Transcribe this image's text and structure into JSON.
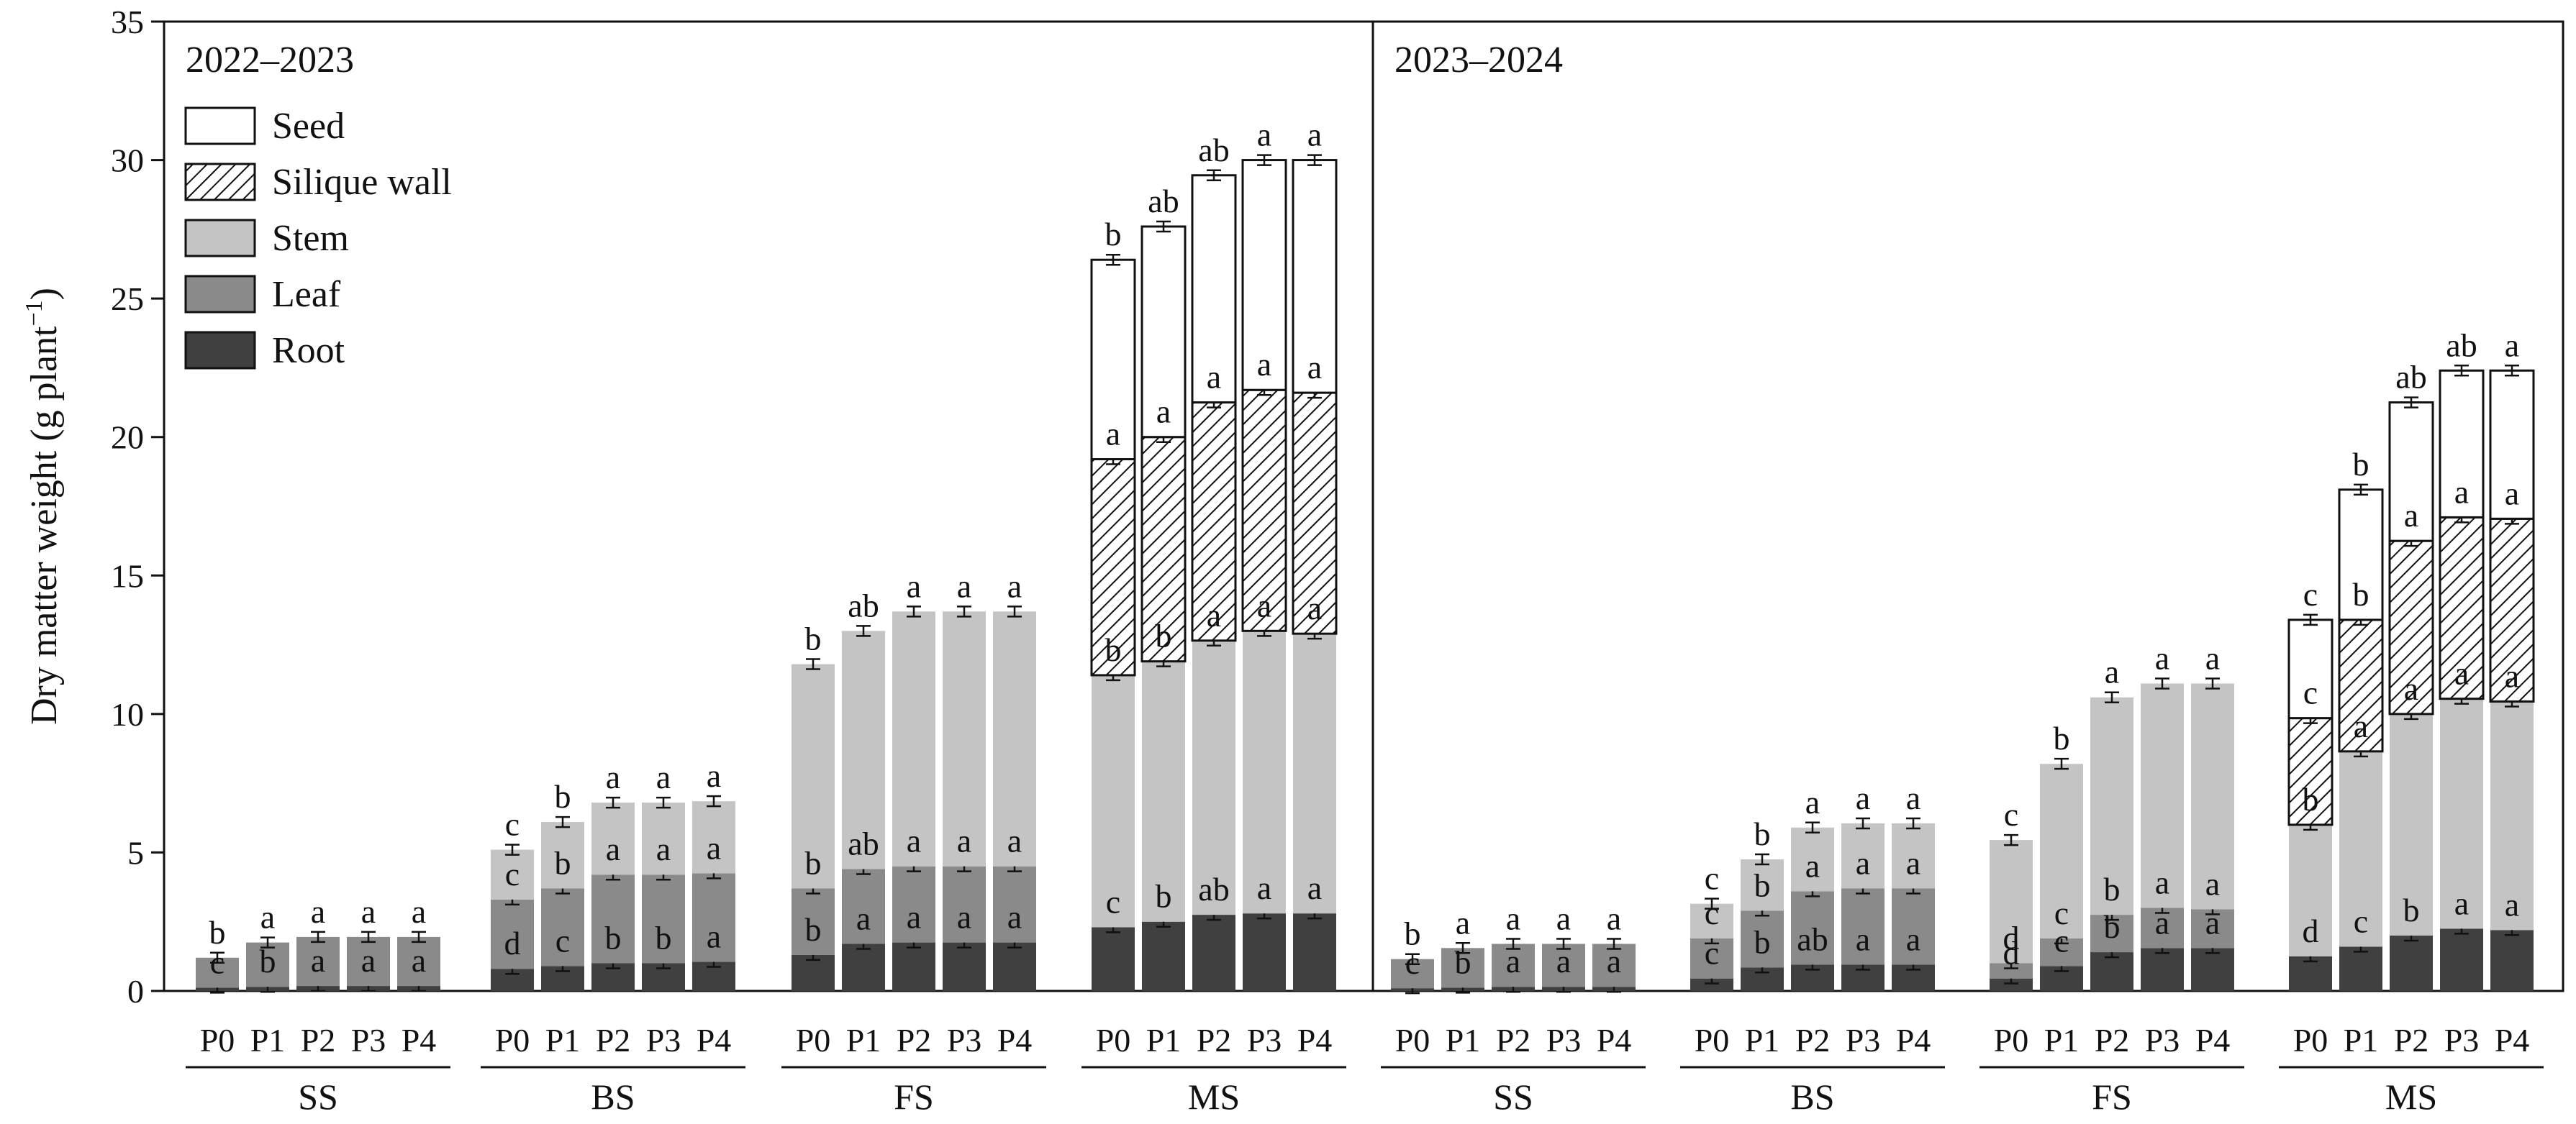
{
  "chart_data": {
    "type": "bar",
    "stacked": true,
    "ylabel": "Dry matter weight (g plant",
    "ylabel_sup": "−1",
    "ylabel_end": ")",
    "ylim": [
      0,
      35
    ],
    "yticks": [
      0,
      5,
      10,
      15,
      20,
      25,
      30,
      35
    ],
    "legend_position": "top-left",
    "components": [
      "Root",
      "Leaf",
      "Stem",
      "Silique wall",
      "Seed"
    ],
    "legend": [
      {
        "name": "Seed",
        "fill": "white"
      },
      {
        "name": "Silique wall",
        "fill": "hatch"
      },
      {
        "name": "Stem",
        "fill": "#c4c4c4"
      },
      {
        "name": "Leaf",
        "fill": "#8a8a8a"
      },
      {
        "name": "Root",
        "fill": "#404040"
      }
    ],
    "colors": {
      "Root": "#404040",
      "Leaf": "#8a8a8a",
      "Stem": "#c4c4c4",
      "Silique wall": "hatch",
      "Seed": "#ffffff"
    },
    "panels": [
      {
        "title": "2022–2023",
        "groups": [
          {
            "name": "SS",
            "bars": [
              {
                "x": "P0",
                "values": {
                  "Root": 0.12,
                  "Leaf": 1.08
                },
                "labels": {
                  "Root": "c",
                  "Leaf": "b"
                }
              },
              {
                "x": "P1",
                "values": {
                  "Root": 0.15,
                  "Leaf": 1.6
                },
                "labels": {
                  "Root": "b",
                  "Leaf": "a"
                }
              },
              {
                "x": "P2",
                "values": {
                  "Root": 0.18,
                  "Leaf": 1.77
                },
                "labels": {
                  "Root": "a",
                  "Leaf": "a"
                }
              },
              {
                "x": "P3",
                "values": {
                  "Root": 0.18,
                  "Leaf": 1.77
                },
                "labels": {
                  "Root": "a",
                  "Leaf": "a"
                }
              },
              {
                "x": "P4",
                "values": {
                  "Root": 0.18,
                  "Leaf": 1.77
                },
                "labels": {
                  "Root": "a",
                  "Leaf": "a"
                }
              }
            ]
          },
          {
            "name": "BS",
            "bars": [
              {
                "x": "P0",
                "values": {
                  "Root": 0.8,
                  "Leaf": 2.5,
                  "Stem": 1.8
                },
                "labels": {
                  "Root": "d",
                  "Leaf": "c",
                  "Stem": "c"
                }
              },
              {
                "x": "P1",
                "values": {
                  "Root": 0.9,
                  "Leaf": 2.8,
                  "Stem": 2.4
                },
                "labels": {
                  "Root": "c",
                  "Leaf": "b",
                  "Stem": "b"
                }
              },
              {
                "x": "P2",
                "values": {
                  "Root": 1.0,
                  "Leaf": 3.2,
                  "Stem": 2.6
                },
                "labels": {
                  "Root": "b",
                  "Leaf": "a",
                  "Stem": "a"
                }
              },
              {
                "x": "P3",
                "values": {
                  "Root": 1.0,
                  "Leaf": 3.2,
                  "Stem": 2.6
                },
                "labels": {
                  "Root": "b",
                  "Leaf": "a",
                  "Stem": "a"
                }
              },
              {
                "x": "P4",
                "values": {
                  "Root": 1.05,
                  "Leaf": 3.2,
                  "Stem": 2.6
                },
                "labels": {
                  "Root": "a",
                  "Leaf": "a",
                  "Stem": "a"
                }
              }
            ]
          },
          {
            "name": "FS",
            "bars": [
              {
                "x": "P0",
                "values": {
                  "Root": 1.3,
                  "Leaf": 2.4,
                  "Stem": 8.1
                },
                "labels": {
                  "Root": "b",
                  "Leaf": "b",
                  "Stem": "b"
                }
              },
              {
                "x": "P1",
                "values": {
                  "Root": 1.7,
                  "Leaf": 2.7,
                  "Stem": 8.6
                },
                "labels": {
                  "Root": "a",
                  "Leaf": "ab",
                  "Stem": "ab"
                }
              },
              {
                "x": "P2",
                "values": {
                  "Root": 1.75,
                  "Leaf": 2.75,
                  "Stem": 9.2
                },
                "labels": {
                  "Root": "a",
                  "Leaf": "a",
                  "Stem": "a"
                }
              },
              {
                "x": "P3",
                "values": {
                  "Root": 1.75,
                  "Leaf": 2.75,
                  "Stem": 9.2
                },
                "labels": {
                  "Root": "a",
                  "Leaf": "a",
                  "Stem": "a"
                }
              },
              {
                "x": "P4",
                "values": {
                  "Root": 1.75,
                  "Leaf": 2.75,
                  "Stem": 9.2
                },
                "labels": {
                  "Root": "a",
                  "Leaf": "a",
                  "Stem": "a"
                }
              }
            ]
          },
          {
            "name": "MS",
            "bars": [
              {
                "x": "P0",
                "values": {
                  "Root": 2.3,
                  "Stem": 9.1,
                  "Silique wall": 7.8,
                  "Seed": 7.2
                },
                "labels": {
                  "Root": "c",
                  "Stem": "b",
                  "Silique wall": "a",
                  "Seed": "b"
                }
              },
              {
                "x": "P1",
                "values": {
                  "Root": 2.5,
                  "Stem": 9.4,
                  "Silique wall": 8.1,
                  "Seed": 7.6
                },
                "labels": {
                  "Root": "b",
                  "Stem": "b",
                  "Silique wall": "a",
                  "Seed": "ab"
                }
              },
              {
                "x": "P2",
                "values": {
                  "Root": 2.75,
                  "Stem": 9.9,
                  "Silique wall": 8.6,
                  "Seed": 8.2
                },
                "labels": {
                  "Root": "ab",
                  "Stem": "a",
                  "Silique wall": "a",
                  "Seed": "ab"
                }
              },
              {
                "x": "P3",
                "values": {
                  "Root": 2.8,
                  "Stem": 10.2,
                  "Silique wall": 8.7,
                  "Seed": 8.3
                },
                "labels": {
                  "Root": "a",
                  "Stem": "a",
                  "Silique wall": "a",
                  "Seed": "a"
                }
              },
              {
                "x": "P4",
                "values": {
                  "Root": 2.8,
                  "Stem": 10.1,
                  "Silique wall": 8.7,
                  "Seed": 8.4
                },
                "labels": {
                  "Root": "a",
                  "Stem": "a",
                  "Silique wall": "a",
                  "Seed": "a"
                }
              }
            ]
          }
        ]
      },
      {
        "title": "2023–2024",
        "groups": [
          {
            "name": "SS",
            "bars": [
              {
                "x": "P0",
                "values": {
                  "Root": 0.1,
                  "Leaf": 1.05
                },
                "labels": {
                  "Root": "c",
                  "Leaf": "b"
                }
              },
              {
                "x": "P1",
                "values": {
                  "Root": 0.12,
                  "Leaf": 1.43
                },
                "labels": {
                  "Root": "b",
                  "Leaf": "a"
                }
              },
              {
                "x": "P2",
                "values": {
                  "Root": 0.15,
                  "Leaf": 1.55
                },
                "labels": {
                  "Root": "a",
                  "Leaf": "a"
                }
              },
              {
                "x": "P3",
                "values": {
                  "Root": 0.15,
                  "Leaf": 1.55
                },
                "labels": {
                  "Root": "a",
                  "Leaf": "a"
                }
              },
              {
                "x": "P4",
                "values": {
                  "Root": 0.15,
                  "Leaf": 1.55
                },
                "labels": {
                  "Root": "a",
                  "Leaf": "a"
                }
              }
            ]
          },
          {
            "name": "BS",
            "bars": [
              {
                "x": "P0",
                "values": {
                  "Root": 0.45,
                  "Leaf": 1.45,
                  "Stem": 1.25
                },
                "labels": {
                  "Root": "c",
                  "Leaf": "c",
                  "Stem": "c"
                }
              },
              {
                "x": "P1",
                "values": {
                  "Root": 0.85,
                  "Leaf": 2.05,
                  "Stem": 1.85
                },
                "labels": {
                  "Root": "b",
                  "Leaf": "b",
                  "Stem": "b"
                }
              },
              {
                "x": "P2",
                "values": {
                  "Root": 0.95,
                  "Leaf": 2.65,
                  "Stem": 2.3
                },
                "labels": {
                  "Root": "ab",
                  "Leaf": "a",
                  "Stem": "a"
                }
              },
              {
                "x": "P3",
                "values": {
                  "Root": 0.95,
                  "Leaf": 2.75,
                  "Stem": 2.35
                },
                "labels": {
                  "Root": "a",
                  "Leaf": "a",
                  "Stem": "a"
                }
              },
              {
                "x": "P4",
                "values": {
                  "Root": 0.95,
                  "Leaf": 2.75,
                  "Stem": 2.35
                },
                "labels": {
                  "Root": "a",
                  "Leaf": "a",
                  "Stem": "a"
                }
              }
            ]
          },
          {
            "name": "FS",
            "bars": [
              {
                "x": "P0",
                "values": {
                  "Root": 0.45,
                  "Leaf": 0.55,
                  "Stem": 4.45
                },
                "labels": {
                  "Root": "d",
                  "Leaf": "d",
                  "Stem": "c"
                }
              },
              {
                "x": "P1",
                "values": {
                  "Root": 0.9,
                  "Leaf": 1.0,
                  "Stem": 6.3
                },
                "labels": {
                  "Root": "c",
                  "Leaf": "c",
                  "Stem": "b"
                }
              },
              {
                "x": "P2",
                "values": {
                  "Root": 1.4,
                  "Leaf": 1.35,
                  "Stem": 7.85
                },
                "labels": {
                  "Root": "b",
                  "Leaf": "b",
                  "Stem": "a"
                }
              },
              {
                "x": "P3",
                "values": {
                  "Root": 1.55,
                  "Leaf": 1.45,
                  "Stem": 8.1
                },
                "labels": {
                  "Root": "a",
                  "Leaf": "a",
                  "Stem": "a"
                }
              },
              {
                "x": "P4",
                "values": {
                  "Root": 1.55,
                  "Leaf": 1.4,
                  "Stem": 8.15
                },
                "labels": {
                  "Root": "a",
                  "Leaf": "a",
                  "Stem": "a"
                }
              }
            ]
          },
          {
            "name": "MS",
            "bars": [
              {
                "x": "P0",
                "values": {
                  "Root": 1.25,
                  "Stem": 4.75,
                  "Silique wall": 3.85,
                  "Seed": 3.55
                },
                "labels": {
                  "Root": "d",
                  "Stem": "b",
                  "Silique wall": "c",
                  "Seed": "c"
                }
              },
              {
                "x": "P1",
                "values": {
                  "Root": 1.6,
                  "Stem": 7.05,
                  "Silique wall": 4.75,
                  "Seed": 4.7
                },
                "labels": {
                  "Root": "c",
                  "Stem": "a",
                  "Silique wall": "b",
                  "Seed": "b"
                }
              },
              {
                "x": "P2",
                "values": {
                  "Root": 2.0,
                  "Stem": 8.0,
                  "Silique wall": 6.25,
                  "Seed": 5.0
                },
                "labels": {
                  "Root": "b",
                  "Stem": "a",
                  "Silique wall": "a",
                  "Seed": "ab"
                }
              },
              {
                "x": "P3",
                "values": {
                  "Root": 2.25,
                  "Stem": 8.3,
                  "Silique wall": 6.55,
                  "Seed": 5.3
                },
                "labels": {
                  "Root": "a",
                  "Stem": "a",
                  "Silique wall": "a",
                  "Seed": "ab"
                }
              },
              {
                "x": "P4",
                "values": {
                  "Root": 2.2,
                  "Stem": 8.25,
                  "Silique wall": 6.6,
                  "Seed": 5.35
                },
                "labels": {
                  "Root": "a",
                  "Stem": "a",
                  "Silique wall": "a",
                  "Seed": "a"
                }
              }
            ]
          }
        ]
      }
    ]
  }
}
